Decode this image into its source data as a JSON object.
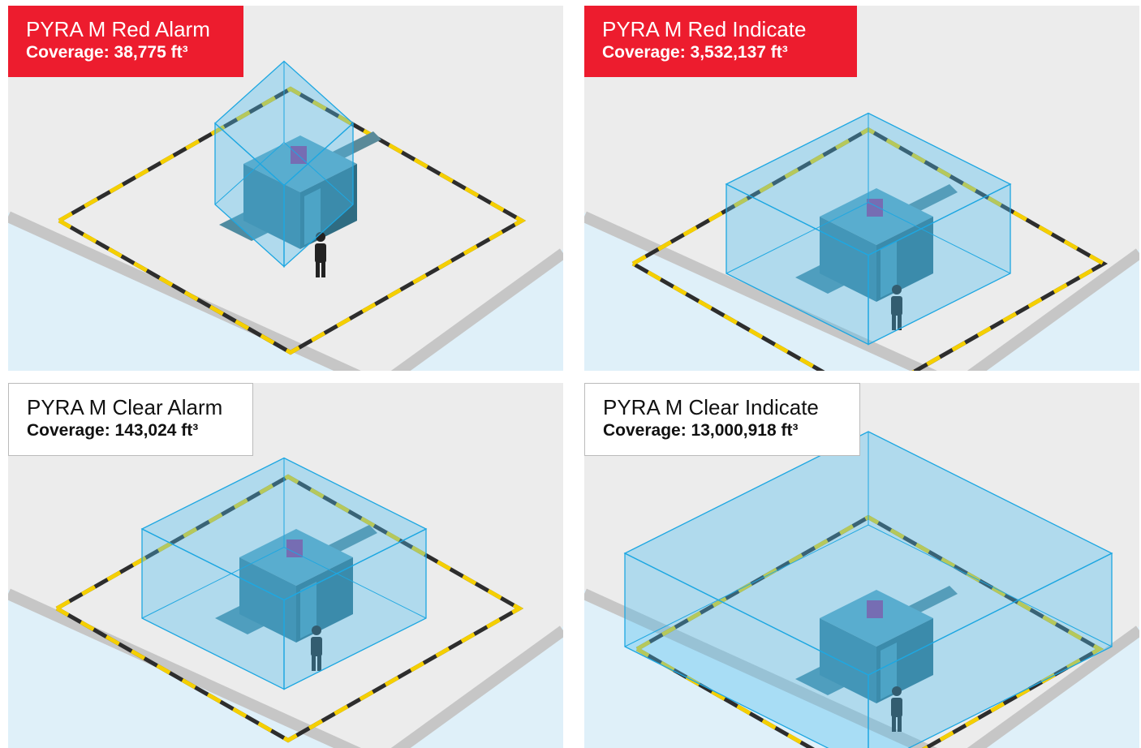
{
  "panels": [
    {
      "title": "PYRA M Red Alarm",
      "coverage": "Coverage: 38,775 ft³"
    },
    {
      "title": "PYRA M Red Indicate",
      "coverage": "Coverage:  3,532,137 ft³"
    },
    {
      "title": "PYRA M Clear Alarm",
      "coverage": "Coverage: 143,024 ft³"
    },
    {
      "title": "PYRA M Clear Indicate",
      "coverage": "Coverage:  13,000,918 ft³"
    }
  ]
}
